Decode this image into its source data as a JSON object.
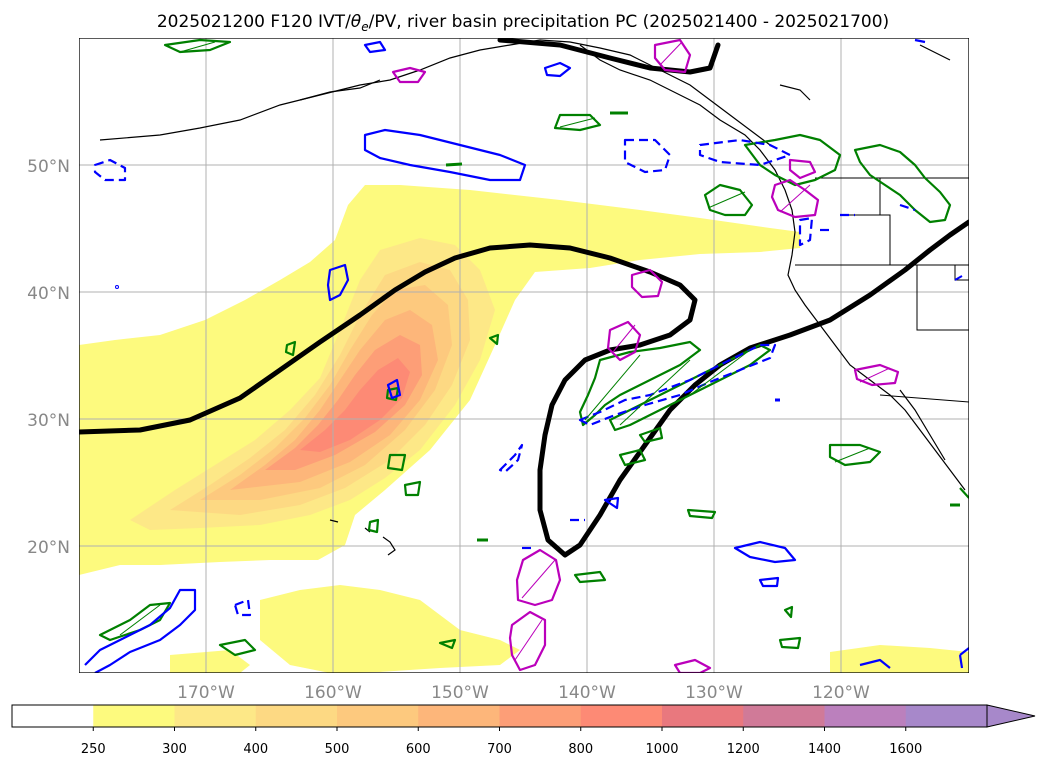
{
  "title": "2025021200 F120 IVT/θe/PV, river basin precipitation PC (2025021400 - 2025021700)",
  "title_parts": {
    "pre": "2025021200 F120 IVT/",
    "theta": "θ",
    "sub": "e",
    "post": "/PV, river basin precipitation PC (2025021400 - 2025021700)"
  },
  "map": {
    "lat_labels": [
      "50°N",
      "40°N",
      "30°N",
      "20°N"
    ],
    "lon_labels": [
      "170°W",
      "160°W",
      "150°W",
      "140°W",
      "130°W",
      "120°W"
    ],
    "lat_range": [
      10,
      60
    ],
    "lon_range": [
      -180,
      -110
    ],
    "gridlines": true
  },
  "colorbar": {
    "ticks": [
      "250",
      "300",
      "400",
      "500",
      "600",
      "700",
      "800",
      "1000",
      "1200",
      "1400",
      "1600"
    ],
    "colors": [
      "#ffffff",
      "#fdfa7e",
      "#fde887",
      "#fdd983",
      "#fdc97e",
      "#fdb67a",
      "#fd9e77",
      "#fd8a75",
      "#e9787e",
      "#d07a98",
      "#bb80bd",
      "#a788ca"
    ],
    "extend": "max"
  },
  "contour_colors": {
    "ivt_fill_low": "#fdfa7e",
    "ivt_fill_high": "#fd8a75",
    "theta_e": "#000000",
    "pv_pos": "#008000",
    "pv_neg": "#0000ff",
    "precip": "#bb00bb",
    "coast": "#000000"
  }
}
